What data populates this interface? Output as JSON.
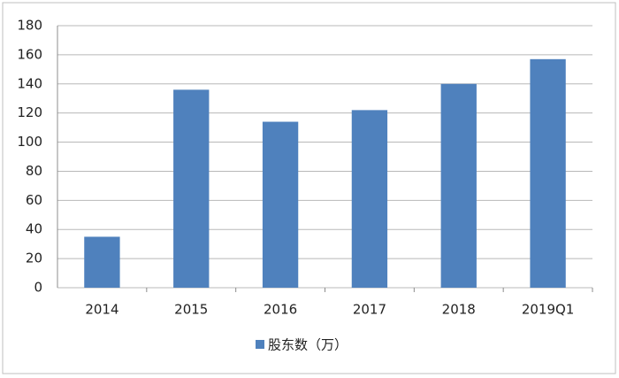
{
  "chart_data": {
    "type": "bar",
    "categories": [
      "2014",
      "2015",
      "2016",
      "2017",
      "2018",
      "2019Q1"
    ],
    "series": [
      {
        "name": "股东数（万）",
        "color": "#4f81bd",
        "values": [
          35,
          136,
          114,
          122,
          140,
          157
        ]
      }
    ],
    "ylim": [
      0,
      180
    ],
    "yticks": [
      0,
      20,
      40,
      60,
      80,
      100,
      120,
      140,
      160,
      180
    ],
    "grid": true,
    "legend": "bottom"
  }
}
